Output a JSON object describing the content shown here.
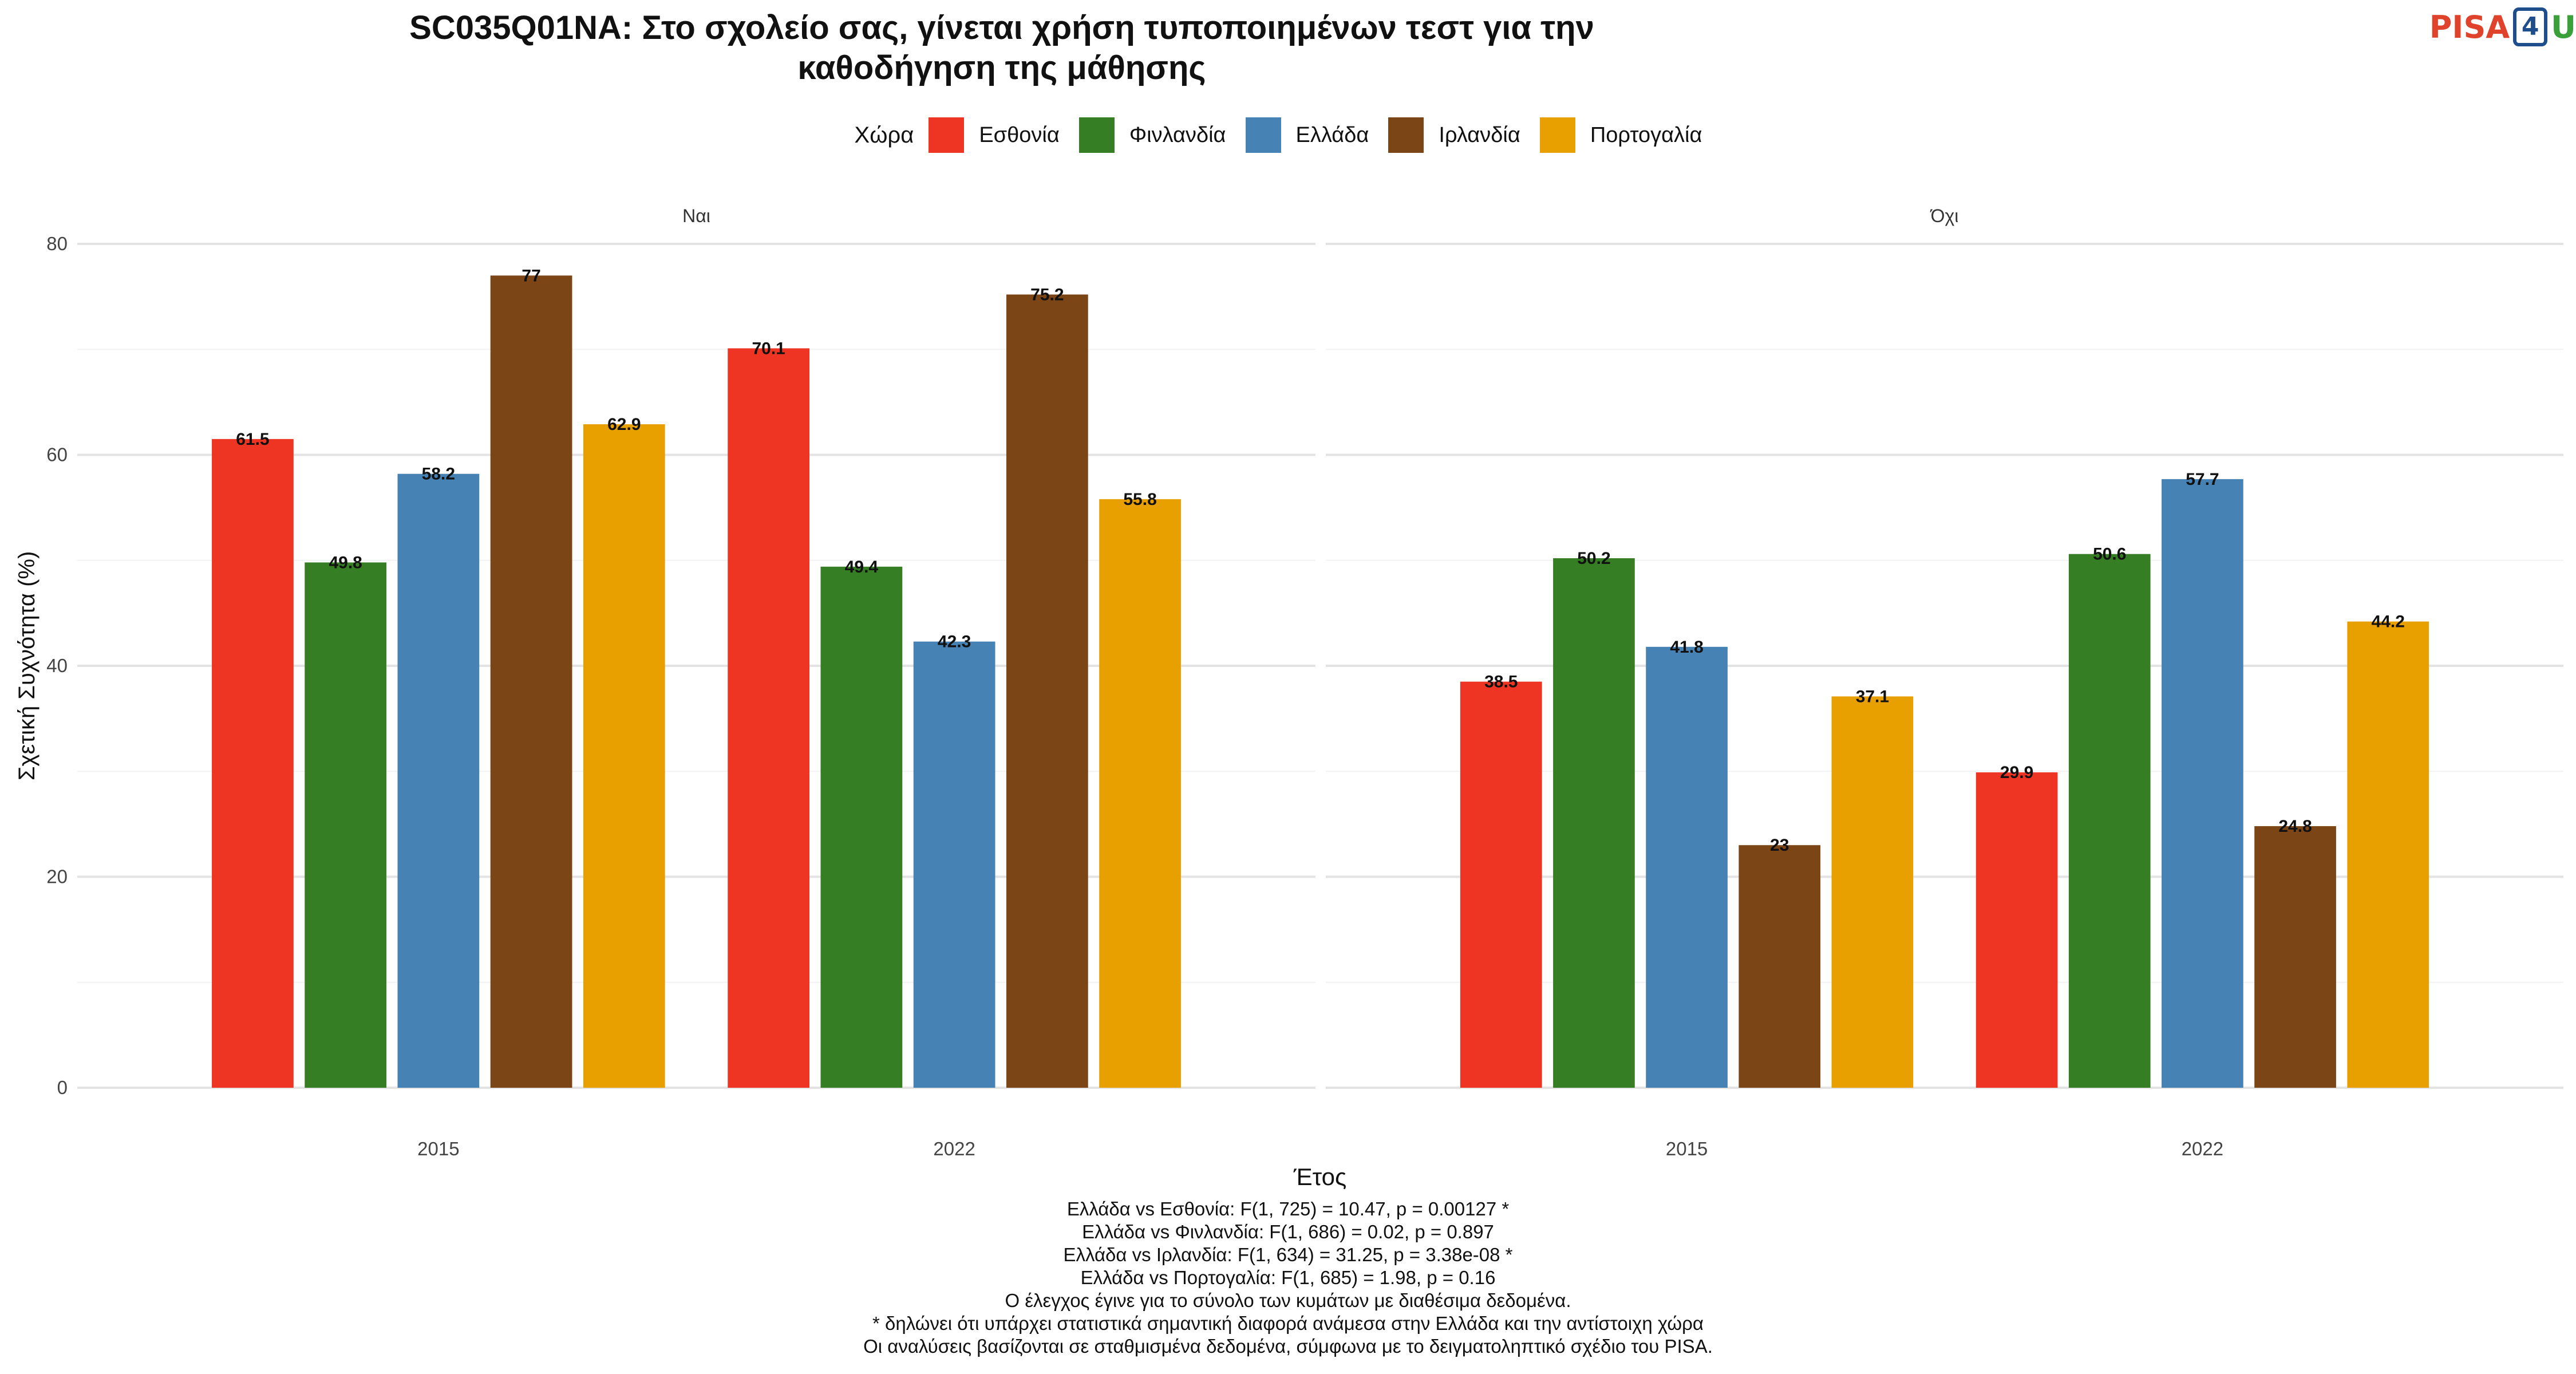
{
  "title_lines": [
    "SC035Q01NA: Στο σχολείο σας, γίνεται χρήση τυποποιημένων τεστ για την",
    "καθοδήγηση της μάθησης"
  ],
  "logo": {
    "text_left": "PISA",
    "digit": "4",
    "text_right": "U",
    "colors": {
      "pisa": "#e0432b",
      "digit": "#1f4e8c",
      "u": "#3aa03a"
    }
  },
  "legend": {
    "title": "Χώρα",
    "items": [
      {
        "label": "Εσθονία",
        "color": "#EE3524"
      },
      {
        "label": "Φινλανδία",
        "color": "#367E23"
      },
      {
        "label": "Ελλάδα",
        "color": "#4682B4"
      },
      {
        "label": "Ιρλανδία",
        "color": "#7B4516"
      },
      {
        "label": "Πορτογαλία",
        "color": "#E8A000"
      }
    ]
  },
  "chart_data": {
    "type": "bar",
    "facets": [
      "Ναι",
      "Όχι"
    ],
    "categories": [
      "2015",
      "2022"
    ],
    "series": [
      {
        "name": "Εσθονία",
        "color": "#EE3524",
        "values": {
          "Ναι": [
            61.5,
            70.1
          ],
          "Όχι": [
            38.5,
            29.9
          ]
        }
      },
      {
        "name": "Φινλανδία",
        "color": "#367E23",
        "values": {
          "Ναι": [
            49.8,
            49.4
          ],
          "Όχι": [
            50.2,
            50.6
          ]
        }
      },
      {
        "name": "Ελλάδα",
        "color": "#4682B4",
        "values": {
          "Ναι": [
            58.2,
            42.3
          ],
          "Όχι": [
            41.8,
            57.7
          ]
        }
      },
      {
        "name": "Ιρλανδία",
        "color": "#7B4516",
        "values": {
          "Ναι": [
            77,
            75.2
          ],
          "Όχι": [
            23,
            24.8
          ]
        }
      },
      {
        "name": "Πορτογαλία",
        "color": "#E8A000",
        "values": {
          "Ναι": [
            62.9,
            55.8
          ],
          "Όχι": [
            37.1,
            44.2
          ]
        }
      }
    ],
    "xlabel": "Έτος",
    "ylabel": "Σχετική Συχνότητα (%)",
    "ylim": [
      0,
      80
    ],
    "yticks": [
      0,
      20,
      40,
      60,
      80
    ],
    "grid": true,
    "legend_position": "top"
  },
  "footer_lines": [
    "Ελλάδα vs Εσθονία: F(1, 725) = 10.47, p = 0.00127 *",
    "Ελλάδα vs Φινλανδία: F(1, 686) = 0.02, p = 0.897",
    "Ελλάδα vs Ιρλανδία: F(1, 634) = 31.25, p = 3.38e-08 *",
    "Ελλάδα vs Πορτογαλία: F(1, 685) = 1.98, p = 0.16",
    "Ο έλεγχος έγινε για το σύνολο των κυμάτων με διαθέσιμα δεδομένα.",
    "* δηλώνει ότι υπάρχει στατιστικά σημαντική διαφορά ανάμεσα στην Ελλάδα και την αντίστοιχη χώρα",
    "Οι αναλύσεις βασίζονται σε σταθμισμένα δεδομένα, σύμφωνα με το δειγματοληπτικό σχέδιο του PISA."
  ]
}
